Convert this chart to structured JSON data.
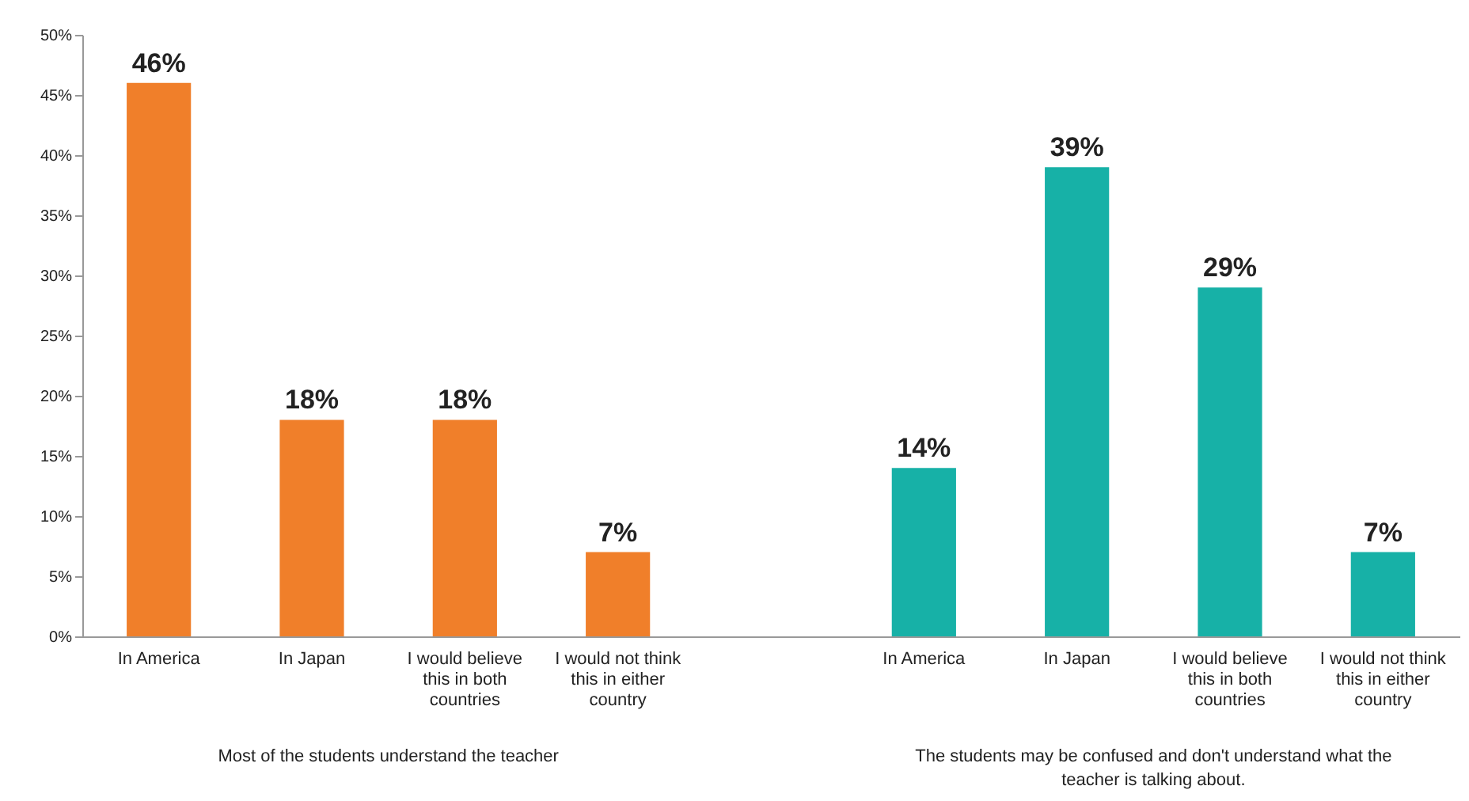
{
  "chart_data": {
    "type": "bar",
    "categories": [
      "In America",
      "In Japan",
      "I would believe this in both countries",
      "I would not think this in either country",
      null,
      "In America",
      "In Japan",
      "I would believe this in both countries",
      "I would not think this in either country"
    ],
    "series": [
      {
        "color": "#f07f2a",
        "values": [
          46,
          18,
          18,
          7,
          null,
          null,
          null,
          null,
          null
        ],
        "value_labels": [
          "46%",
          "18%",
          "18%",
          "7%",
          null,
          null,
          null,
          null,
          null
        ]
      },
      {
        "color": "#17b1a7",
        "values": [
          null,
          null,
          null,
          null,
          null,
          14,
          39,
          29,
          7
        ],
        "value_labels": [
          null,
          null,
          null,
          null,
          null,
          "14%",
          "39%",
          "29%",
          "7%"
        ]
      }
    ],
    "ylim": [
      0,
      50
    ],
    "yticks": [
      {
        "value": 0,
        "label": "0%"
      },
      {
        "value": 5,
        "label": "5%"
      },
      {
        "value": 10,
        "label": "10%"
      },
      {
        "value": 15,
        "label": "15%"
      },
      {
        "value": 20,
        "label": "20%"
      },
      {
        "value": 25,
        "label": "25%"
      },
      {
        "value": 30,
        "label": "30%"
      },
      {
        "value": 35,
        "label": "35%"
      },
      {
        "value": 40,
        "label": "40%"
      },
      {
        "value": 45,
        "label": "45%"
      },
      {
        "value": 50,
        "label": "50%"
      }
    ],
    "annotations": [
      "Most of the students understand the teacher",
      "The students may be confused and don't understand what the teacher is talking about."
    ],
    "grid": false
  }
}
